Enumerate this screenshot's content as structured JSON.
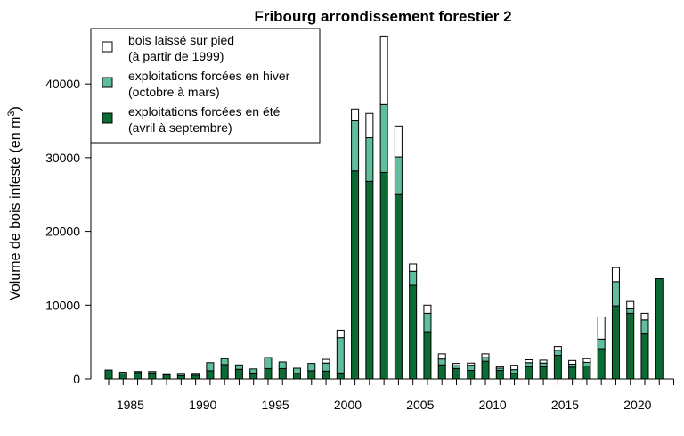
{
  "chart_data": {
    "type": "bar",
    "stacked": true,
    "title": "Fribourg arrondissement forestier 2",
    "xlabel": "",
    "ylabel_main": "Volume de bois infesté (en m",
    "ylabel_superscript": "3",
    "ylabel_close": ")",
    "ylim": [
      0,
      48000
    ],
    "grid": false,
    "legend_placement": "top-left",
    "colors": {
      "summer": "#0b6b34",
      "winter": "#5fbe9b",
      "standing": "#ffffff",
      "outline": "#000000"
    },
    "x_ticks": [
      {
        "value": 1985,
        "label": "1985"
      },
      {
        "value": 1990,
        "label": "1990"
      },
      {
        "value": 1995,
        "label": "1995"
      },
      {
        "value": 2000,
        "label": "2000"
      },
      {
        "value": 2005,
        "label": "2005"
      },
      {
        "value": 2010,
        "label": "2010"
      },
      {
        "value": 2015,
        "label": "2015"
      },
      {
        "value": 2020,
        "label": "2020"
      }
    ],
    "y_ticks": [
      {
        "value": 0,
        "label": "0"
      },
      {
        "value": 10000,
        "label": "10000"
      },
      {
        "value": 20000,
        "label": "20000"
      },
      {
        "value": 30000,
        "label": "30000"
      },
      {
        "value": 40000,
        "label": "40000"
      }
    ],
    "legend": [
      {
        "key": "standing",
        "line1": "bois laissé sur pied",
        "line2": "(à partir de 1999)"
      },
      {
        "key": "winter",
        "line1": "exploitations forcées en hiver",
        "line2": "(octobre à mars)"
      },
      {
        "key": "summer",
        "line1": "exploitations forcées en été",
        "line2": "(avril à septembre)"
      }
    ],
    "categories": [
      1984,
      1985,
      1986,
      1987,
      1988,
      1989,
      1990,
      1991,
      1992,
      1993,
      1994,
      1995,
      1996,
      1997,
      1998,
      1999,
      2000,
      2001,
      2002,
      2003,
      2004,
      2005,
      2006,
      2007,
      2008,
      2009,
      2010,
      2011,
      2012,
      2013,
      2014,
      2015,
      2016,
      2017,
      2018,
      2019,
      2020,
      2021,
      2022
    ],
    "series": [
      {
        "name": "exploitations forcées en été (avril à septembre)",
        "key": "summer",
        "values": [
          1200,
          700,
          850,
          800,
          550,
          450,
          500,
          1100,
          1950,
          1300,
          800,
          1400,
          1400,
          750,
          1100,
          1050,
          800,
          28200,
          26800,
          28000,
          25000,
          12700,
          6400,
          1900,
          1400,
          1150,
          2400,
          1150,
          750,
          1650,
          1650,
          3200,
          1600,
          1750,
          4100,
          9900,
          8900,
          6100,
          13600
        ]
      },
      {
        "name": "exploitations forcées en hiver (octobre à mars)",
        "key": "winter",
        "values": [
          0,
          200,
          150,
          200,
          150,
          300,
          250,
          1100,
          800,
          600,
          550,
          1500,
          900,
          700,
          1000,
          1100,
          4800,
          6800,
          5900,
          9200,
          5100,
          1900,
          2500,
          800,
          400,
          700,
          500,
          300,
          500,
          550,
          500,
          700,
          400,
          500,
          1300,
          3300,
          600,
          1900,
          0
        ]
      },
      {
        "name": "bois laissé sur pied (à partir de 1999)",
        "key": "standing",
        "values": [
          0,
          0,
          0,
          0,
          0,
          0,
          0,
          0,
          0,
          0,
          0,
          0,
          0,
          0,
          0,
          500,
          1000,
          1600,
          3300,
          9300,
          4200,
          1000,
          1100,
          700,
          300,
          300,
          500,
          200,
          600,
          400,
          400,
          500,
          500,
          500,
          3000,
          1900,
          1000,
          900,
          0
        ]
      }
    ]
  }
}
